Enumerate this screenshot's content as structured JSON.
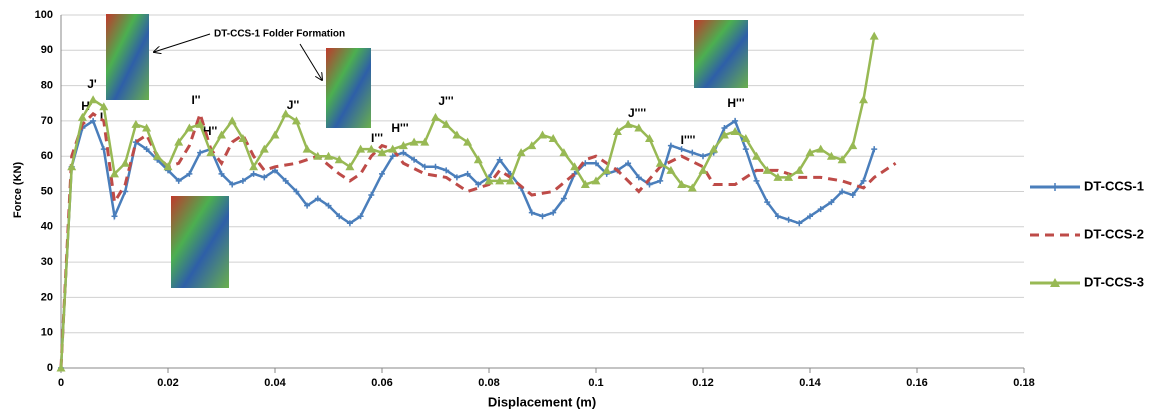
{
  "chart_data": {
    "type": "line",
    "x_label": "Displacement  (m)",
    "y_label": "Force (KN)",
    "xlim": [
      0,
      0.18
    ],
    "xticks": [
      0,
      0.02,
      0.04,
      0.06,
      0.08,
      0.1,
      0.12,
      0.14,
      0.16,
      0.18
    ],
    "ylim": [
      0,
      100
    ],
    "yticks": [
      0,
      10,
      20,
      30,
      40,
      50,
      60,
      70,
      80,
      90,
      100
    ],
    "grid": true,
    "legend": "right",
    "annotations": [
      "H'",
      "J'",
      "I'",
      "I''",
      "H''",
      "J''",
      "I'''",
      "H'''",
      "J'''",
      "J''''",
      "I''''",
      "H'''",
      "DT-CCS-1 Folder Formation"
    ],
    "series": [
      {
        "name": "DT-CCS-1",
        "color": "#4a7ebb",
        "marker": "plus",
        "x": [
          0,
          0.002,
          0.004,
          0.006,
          0.008,
          0.01,
          0.012,
          0.014,
          0.016,
          0.018,
          0.02,
          0.022,
          0.024,
          0.026,
          0.028,
          0.03,
          0.032,
          0.034,
          0.036,
          0.038,
          0.04,
          0.042,
          0.044,
          0.046,
          0.048,
          0.05,
          0.052,
          0.054,
          0.056,
          0.058,
          0.06,
          0.062,
          0.064,
          0.066,
          0.068,
          0.07,
          0.072,
          0.074,
          0.076,
          0.078,
          0.08,
          0.082,
          0.084,
          0.086,
          0.088,
          0.09,
          0.092,
          0.094,
          0.096,
          0.098,
          0.1,
          0.102,
          0.104,
          0.106,
          0.108,
          0.11,
          0.112,
          0.114,
          0.116,
          0.118,
          0.12,
          0.122,
          0.124,
          0.126,
          0.128,
          0.13,
          0.132,
          0.134,
          0.136,
          0.138,
          0.14,
          0.142,
          0.144,
          0.146,
          0.148,
          0.15,
          0.152
        ],
        "values": [
          0,
          57,
          68,
          70,
          62,
          43,
          50,
          64,
          62,
          59,
          56,
          53,
          55,
          61,
          62,
          55,
          52,
          53,
          55,
          54,
          56,
          53,
          50,
          46,
          48,
          46,
          43,
          41,
          43,
          49,
          55,
          60,
          61,
          59,
          57,
          57,
          56,
          54,
          55,
          52,
          54,
          59,
          55,
          51,
          44,
          43,
          44,
          48,
          55,
          58,
          58,
          55,
          56,
          58,
          54,
          52,
          53,
          63,
          62,
          61,
          60,
          61,
          68,
          70,
          62,
          53,
          47,
          43,
          42,
          41,
          43,
          45,
          47,
          50,
          49,
          53,
          62
        ]
      },
      {
        "name": "DT-CCS-2",
        "color": "#be4b48",
        "marker": "none",
        "x": [
          0,
          0.002,
          0.004,
          0.006,
          0.008,
          0.01,
          0.012,
          0.014,
          0.016,
          0.018,
          0.02,
          0.022,
          0.024,
          0.026,
          0.028,
          0.03,
          0.032,
          0.034,
          0.036,
          0.038,
          0.04,
          0.044,
          0.048,
          0.052,
          0.054,
          0.056,
          0.058,
          0.06,
          0.062,
          0.064,
          0.068,
          0.072,
          0.076,
          0.08,
          0.082,
          0.084,
          0.088,
          0.092,
          0.096,
          0.098,
          0.1,
          0.104,
          0.108,
          0.112,
          0.116,
          0.12,
          0.122,
          0.126,
          0.13,
          0.134,
          0.138,
          0.142,
          0.146,
          0.15,
          0.152,
          0.156
        ],
        "values": [
          0,
          60,
          69,
          72,
          70,
          47,
          52,
          64,
          66,
          60,
          57,
          58,
          63,
          72,
          62,
          58,
          64,
          66,
          60,
          56,
          57,
          58,
          60,
          55,
          53,
          55,
          60,
          63,
          62,
          58,
          55,
          54,
          50,
          52,
          56,
          54,
          49,
          50,
          55,
          59,
          60,
          56,
          50,
          57,
          60,
          57,
          52,
          52,
          56,
          56,
          54,
          54,
          53,
          51,
          54,
          58
        ]
      },
      {
        "name": "DT-CCS-3",
        "color": "#98b954",
        "marker": "triangle",
        "x": [
          0,
          0.002,
          0.004,
          0.006,
          0.008,
          0.01,
          0.012,
          0.014,
          0.016,
          0.018,
          0.02,
          0.022,
          0.024,
          0.026,
          0.028,
          0.03,
          0.032,
          0.034,
          0.036,
          0.038,
          0.04,
          0.042,
          0.044,
          0.046,
          0.048,
          0.05,
          0.052,
          0.054,
          0.056,
          0.058,
          0.06,
          0.062,
          0.064,
          0.066,
          0.068,
          0.07,
          0.072,
          0.074,
          0.076,
          0.078,
          0.08,
          0.082,
          0.084,
          0.086,
          0.088,
          0.09,
          0.092,
          0.094,
          0.096,
          0.098,
          0.1,
          0.102,
          0.104,
          0.106,
          0.108,
          0.11,
          0.112,
          0.114,
          0.116,
          0.118,
          0.12,
          0.122,
          0.124,
          0.126,
          0.128,
          0.13,
          0.132,
          0.134,
          0.136,
          0.138,
          0.14,
          0.142,
          0.144,
          0.146,
          0.148,
          0.15,
          0.152
        ],
        "values": [
          0,
          57,
          71,
          76,
          74,
          55,
          58,
          69,
          68,
          60,
          57,
          64,
          68,
          69,
          61,
          66,
          70,
          65,
          57,
          62,
          66,
          72,
          70,
          62,
          60,
          60,
          59,
          57,
          62,
          62,
          61,
          62,
          63,
          64,
          64,
          71,
          69,
          66,
          64,
          59,
          53,
          53,
          53,
          61,
          63,
          66,
          65,
          61,
          57,
          52,
          53,
          56,
          67,
          69,
          68,
          65,
          58,
          56,
          52,
          51,
          56,
          62,
          66,
          67,
          65,
          60,
          56,
          54,
          54,
          56,
          61,
          62,
          60,
          59,
          63,
          76,
          94
        ]
      }
    ]
  }
}
